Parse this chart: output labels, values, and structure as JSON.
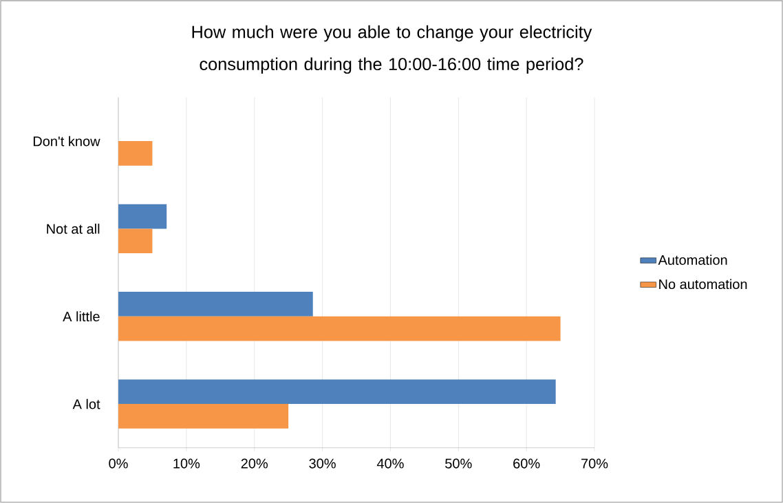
{
  "chart_data": {
    "type": "bar",
    "orientation": "horizontal",
    "title": "How much were you able to change your electricity consumption during the 10:00-16:00 time period?",
    "categories": [
      "Don't know",
      "Not at all",
      "A little",
      "A lot"
    ],
    "series": [
      {
        "name": "Automation",
        "color": "#4f81bd",
        "values": [
          null,
          7.1,
          28.6,
          64.3
        ]
      },
      {
        "name": "No automation",
        "color": "#f79646",
        "values": [
          5,
          5,
          65,
          25
        ]
      }
    ],
    "xlim": [
      0,
      70
    ],
    "xticks": [
      {
        "value": 0,
        "label": "0%"
      },
      {
        "value": 10,
        "label": "10%"
      },
      {
        "value": 20,
        "label": "20%"
      },
      {
        "value": 30,
        "label": "30%"
      },
      {
        "value": 40,
        "label": "40%"
      },
      {
        "value": 50,
        "label": "50%"
      },
      {
        "value": 60,
        "label": "60%"
      },
      {
        "value": 70,
        "label": "70%"
      }
    ],
    "grid": "x",
    "legend": "right"
  }
}
